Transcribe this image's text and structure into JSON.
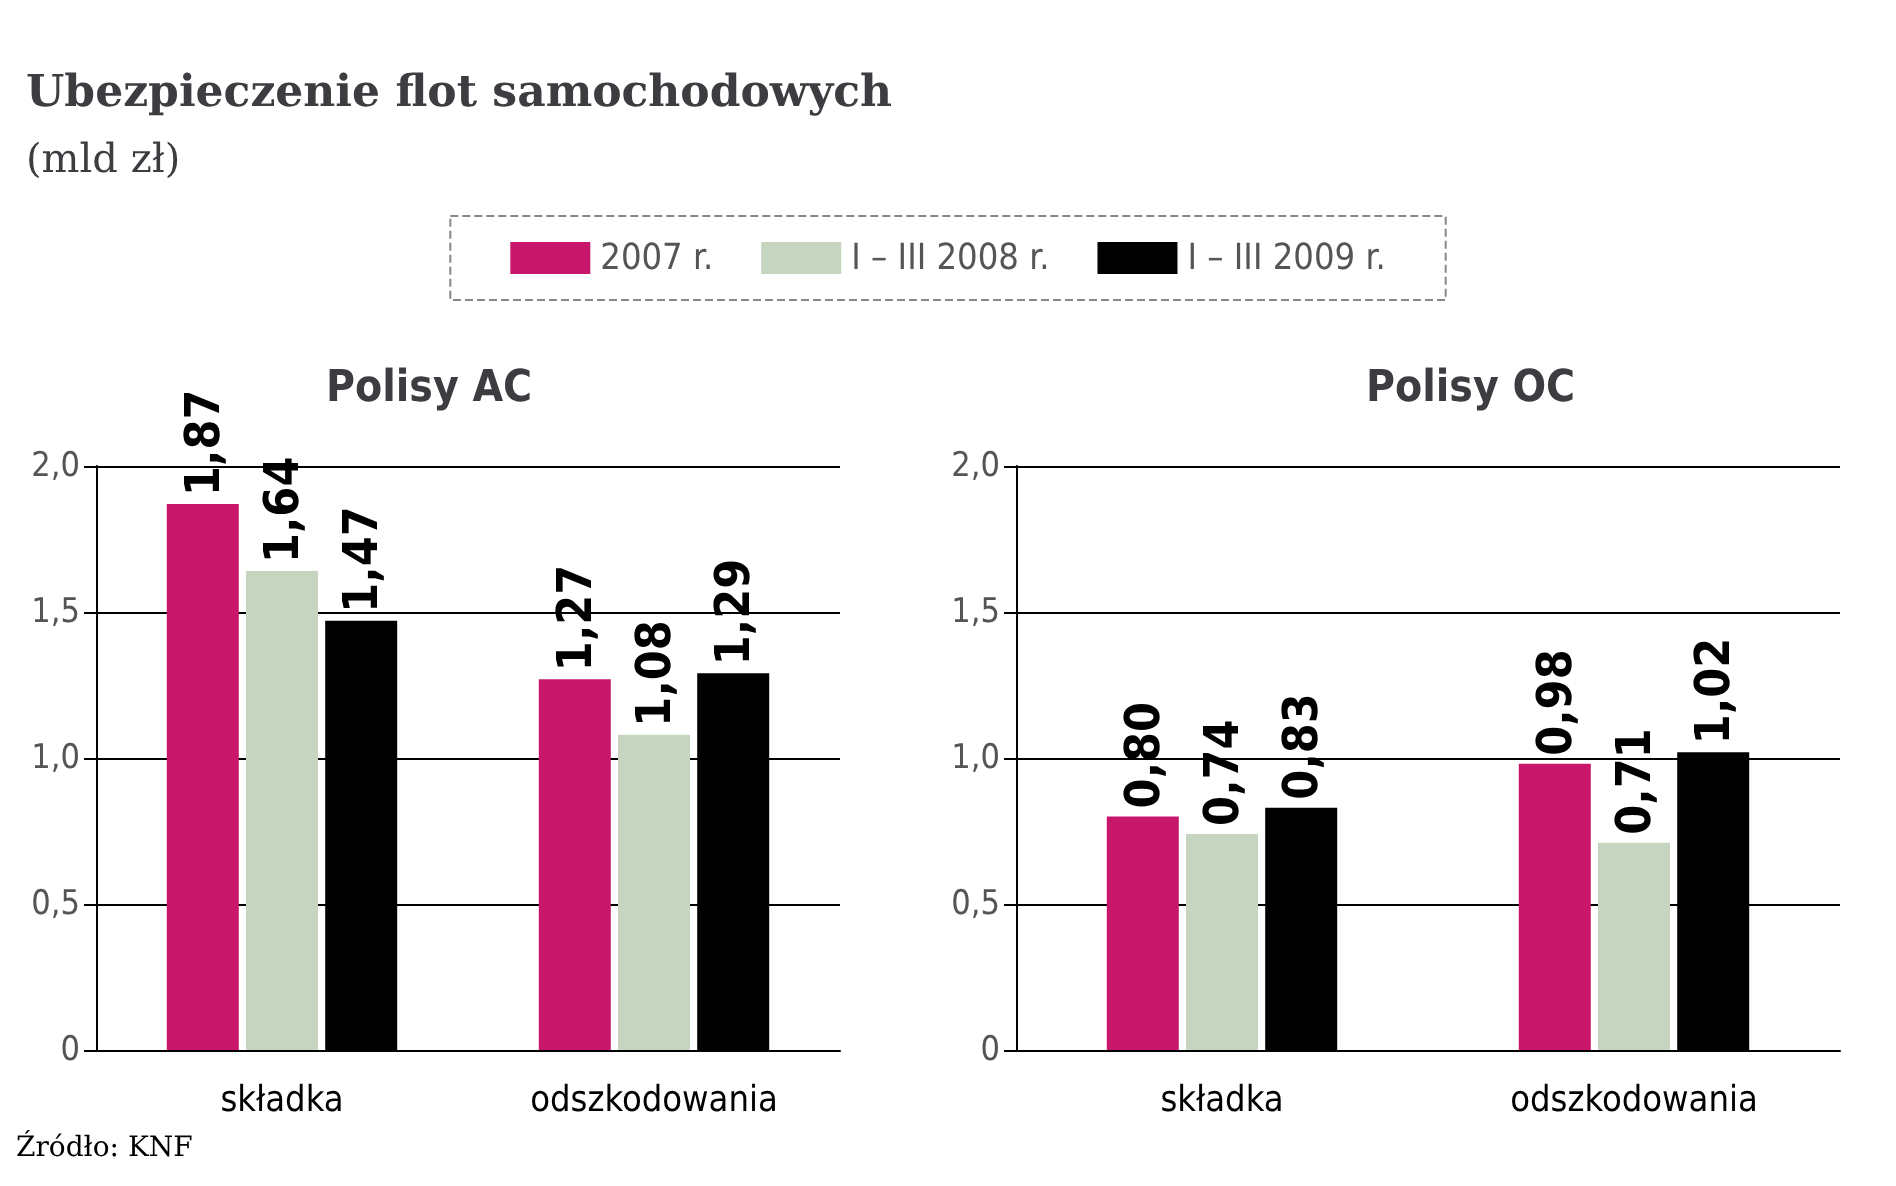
{
  "chart_data": [
    {
      "type": "bar",
      "title": "Ubezpieczenie flot samochodowych",
      "ylabel": "(mld zł)",
      "subtitle": "Polisy AC",
      "categories": [
        "składka",
        "odszkodowania"
      ],
      "series": [
        {
          "name": "2007 r.",
          "color": "#c8176b",
          "values": [
            1.87,
            1.27
          ],
          "value_labels": [
            "1,87",
            "1,27"
          ]
        },
        {
          "name": "I – III 2008 r.",
          "color": "#c5d5c0",
          "values": [
            1.64,
            1.08
          ],
          "value_labels": [
            "1,64",
            "1,08"
          ]
        },
        {
          "name": "I – III 2009 r.",
          "color": "#000000",
          "values": [
            1.47,
            1.29
          ],
          "value_labels": [
            "1,47",
            "1,29"
          ]
        }
      ],
      "ylim": [
        0,
        2
      ],
      "yticks": [
        0,
        {
          "value": 0.5,
          "label": "0,5"
        },
        {
          "value": 1,
          "label": "1,0"
        },
        {
          "value": 1.5,
          "label": "1,5"
        },
        {
          "value": 2,
          "label": "2,0"
        }
      ],
      "grid": "y",
      "legend": "top",
      "annotations": [
        "Źródło: KNF"
      ]
    },
    {
      "type": "bar",
      "title": "Polisy OC",
      "categories": [
        "składka",
        "odszkodowania"
      ],
      "series": [
        {
          "color": "#c8176b",
          "values": [
            0.8,
            0.98
          ],
          "value_labels": [
            "0,80",
            "0,98"
          ]
        },
        {
          "color": "#c5d5c0",
          "values": [
            0.74,
            0.71
          ],
          "value_labels": [
            "0,74",
            "0,71"
          ]
        },
        {
          "color": "#000000",
          "values": [
            0.83,
            1.02
          ],
          "value_labels": [
            "0,83",
            "1,02"
          ]
        }
      ],
      "ylim": [
        0,
        2
      ],
      "yticks": [
        0,
        {
          "value": 0.5,
          "label": "0,5"
        },
        {
          "value": 1,
          "label": "1,0"
        },
        {
          "value": 1.5,
          "label": "1,5"
        },
        {
          "value": 2,
          "label": "2,0"
        }
      ],
      "grid": "y"
    }
  ]
}
